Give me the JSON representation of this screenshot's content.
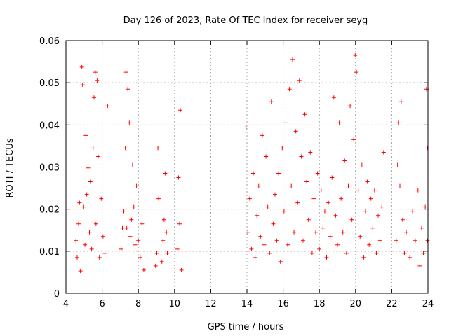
{
  "chart_data": {
    "type": "scatter",
    "title": "Day 126 of 2023, Rate Of TEC Index for receiver seyg",
    "xlabel": "GPS time / hours",
    "ylabel": "ROTI / TECUs",
    "xlim": [
      4,
      24
    ],
    "ylim": [
      0,
      0.06
    ],
    "xticks": [
      4,
      6,
      8,
      10,
      12,
      14,
      16,
      18,
      20,
      22,
      24
    ],
    "xtick_labels": [
      "4",
      "6",
      "8",
      "10",
      "12",
      "14",
      "16",
      "18",
      "20",
      "22",
      "24"
    ],
    "yticks": [
      0,
      0.01,
      0.02,
      0.03,
      0.04,
      0.05,
      0.06
    ],
    "ytick_labels": [
      "0",
      "0.01",
      "0.02",
      "0.03",
      "0.04",
      "0.05",
      "0.06"
    ],
    "grid": true,
    "marker": "+",
    "color": "#ff0000",
    "series": [
      {
        "points": [
          [
            4.55,
            0.0125
          ],
          [
            4.62,
            0.0085
          ],
          [
            4.7,
            0.0165
          ],
          [
            4.75,
            0.0215
          ],
          [
            4.8,
            0.0053
          ],
          [
            4.88,
            0.0537
          ],
          [
            4.92,
            0.0495
          ],
          [
            4.98,
            0.0205
          ],
          [
            5.05,
            0.0115
          ],
          [
            5.1,
            0.0375
          ],
          [
            5.15,
            0.0235
          ],
          [
            5.22,
            0.0298
          ],
          [
            5.3,
            0.0145
          ],
          [
            5.35,
            0.0265
          ],
          [
            5.42,
            0.0105
          ],
          [
            5.5,
            0.0345
          ],
          [
            5.55,
            0.0465
          ],
          [
            5.62,
            0.0525
          ],
          [
            5.66,
            0.0165
          ],
          [
            5.72,
            0.0505
          ],
          [
            5.78,
            0.0325
          ],
          [
            5.85,
            0.0085
          ],
          [
            5.95,
            0.0225
          ],
          [
            6.05,
            0.0135
          ],
          [
            6.15,
            0.0095
          ],
          [
            6.3,
            0.0445
          ],
          [
            7.05,
            0.0105
          ],
          [
            7.12,
            0.0155
          ],
          [
            7.2,
            0.0195
          ],
          [
            7.28,
            0.0345
          ],
          [
            7.32,
            0.0525
          ],
          [
            7.36,
            0.0155
          ],
          [
            7.42,
            0.0485
          ],
          [
            7.5,
            0.0405
          ],
          [
            7.55,
            0.0135
          ],
          [
            7.62,
            0.0175
          ],
          [
            7.68,
            0.0305
          ],
          [
            7.75,
            0.0205
          ],
          [
            7.82,
            0.0115
          ],
          [
            7.9,
            0.0255
          ],
          [
            8.0,
            0.0125
          ],
          [
            8.1,
            0.0085
          ],
          [
            8.2,
            0.0165
          ],
          [
            8.3,
            0.0055
          ],
          [
            8.95,
            0.0065
          ],
          [
            9.02,
            0.0095
          ],
          [
            9.08,
            0.0345
          ],
          [
            9.12,
            0.0225
          ],
          [
            9.3,
            0.0075
          ],
          [
            9.36,
            0.0125
          ],
          [
            9.42,
            0.0175
          ],
          [
            9.48,
            0.0285
          ],
          [
            9.55,
            0.0145
          ],
          [
            9.6,
            0.0095
          ],
          [
            10.15,
            0.0105
          ],
          [
            10.22,
            0.0275
          ],
          [
            10.28,
            0.0165
          ],
          [
            10.32,
            0.0435
          ],
          [
            10.38,
            0.0055
          ],
          [
            13.95,
            0.0395
          ],
          [
            14.05,
            0.0145
          ],
          [
            14.15,
            0.0225
          ],
          [
            14.25,
            0.0105
          ],
          [
            14.35,
            0.0285
          ],
          [
            14.45,
            0.0085
          ],
          [
            14.55,
            0.0185
          ],
          [
            14.65,
            0.0255
          ],
          [
            14.75,
            0.0135
          ],
          [
            14.85,
            0.0375
          ],
          [
            14.95,
            0.0115
          ],
          [
            15.05,
            0.0325
          ],
          [
            15.15,
            0.0205
          ],
          [
            15.25,
            0.0095
          ],
          [
            15.35,
            0.0455
          ],
          [
            15.45,
            0.0165
          ],
          [
            15.55,
            0.0235
          ],
          [
            15.65,
            0.0125
          ],
          [
            15.75,
            0.0285
          ],
          [
            15.85,
            0.0075
          ],
          [
            15.95,
            0.0345
          ],
          [
            16.05,
            0.0195
          ],
          [
            16.15,
            0.0405
          ],
          [
            16.25,
            0.0115
          ],
          [
            16.35,
            0.0485
          ],
          [
            16.45,
            0.0255
          ],
          [
            16.52,
            0.0555
          ],
          [
            16.6,
            0.0145
          ],
          [
            16.7,
            0.0385
          ],
          [
            16.8,
            0.0215
          ],
          [
            16.9,
            0.0505
          ],
          [
            17.0,
            0.0325
          ],
          [
            17.1,
            0.0125
          ],
          [
            17.2,
            0.0425
          ],
          [
            17.3,
            0.0265
          ],
          [
            17.4,
            0.0175
          ],
          [
            17.5,
            0.0335
          ],
          [
            17.6,
            0.0095
          ],
          [
            17.7,
            0.0225
          ],
          [
            17.8,
            0.0145
          ],
          [
            17.9,
            0.0285
          ],
          [
            18.0,
            0.0105
          ],
          [
            18.1,
            0.0245
          ],
          [
            18.2,
            0.0155
          ],
          [
            18.3,
            0.0195
          ],
          [
            18.4,
            0.0085
          ],
          [
            18.5,
            0.0215
          ],
          [
            18.6,
            0.0135
          ],
          [
            18.7,
            0.0275
          ],
          [
            18.8,
            0.0465
          ],
          [
            18.9,
            0.0185
          ],
          [
            19.0,
            0.0115
          ],
          [
            19.1,
            0.0405
          ],
          [
            19.2,
            0.0225
          ],
          [
            19.3,
            0.0145
          ],
          [
            19.4,
            0.0315
          ],
          [
            19.5,
            0.0095
          ],
          [
            19.6,
            0.0255
          ],
          [
            19.7,
            0.0445
          ],
          [
            19.8,
            0.0175
          ],
          [
            19.9,
            0.0365
          ],
          [
            19.98,
            0.0565
          ],
          [
            20.05,
            0.0525
          ],
          [
            20.15,
            0.0245
          ],
          [
            20.25,
            0.0135
          ],
          [
            20.35,
            0.0305
          ],
          [
            20.45,
            0.0085
          ],
          [
            20.55,
            0.0195
          ],
          [
            20.65,
            0.0265
          ],
          [
            20.75,
            0.0115
          ],
          [
            20.85,
            0.0225
          ],
          [
            20.95,
            0.0155
          ],
          [
            21.05,
            0.0245
          ],
          [
            21.15,
            0.0095
          ],
          [
            21.25,
            0.0185
          ],
          [
            21.35,
            0.0125
          ],
          [
            21.45,
            0.0205
          ],
          [
            21.55,
            0.0335
          ],
          [
            22.25,
            0.0125
          ],
          [
            22.32,
            0.0305
          ],
          [
            22.38,
            0.0405
          ],
          [
            22.45,
            0.0255
          ],
          [
            22.52,
            0.0455
          ],
          [
            22.6,
            0.0175
          ],
          [
            22.7,
            0.0095
          ],
          [
            22.8,
            0.0145
          ],
          [
            23.0,
            0.0085
          ],
          [
            23.15,
            0.0195
          ],
          [
            23.3,
            0.0125
          ],
          [
            23.45,
            0.0245
          ],
          [
            23.55,
            0.0065
          ],
          [
            23.65,
            0.0155
          ],
          [
            23.75,
            0.0095
          ],
          [
            23.85,
            0.0205
          ],
          [
            23.92,
            0.0485
          ],
          [
            23.96,
            0.0345
          ],
          [
            23.98,
            0.0125
          ]
        ]
      }
    ]
  }
}
